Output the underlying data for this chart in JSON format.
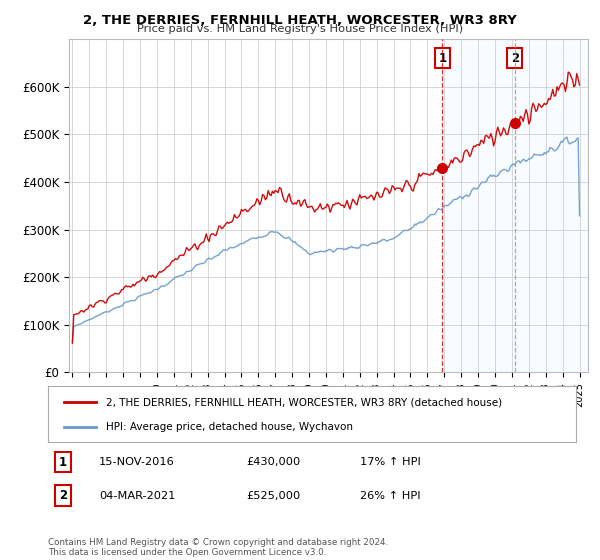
{
  "title": "2, THE DERRIES, FERNHILL HEATH, WORCESTER, WR3 8RY",
  "subtitle": "Price paid vs. HM Land Registry's House Price Index (HPI)",
  "legend_line1": "2, THE DERRIES, FERNHILL HEATH, WORCESTER, WR3 8RY (detached house)",
  "legend_line2": "HPI: Average price, detached house, Wychavon",
  "annotation1_label": "1",
  "annotation1_date": "15-NOV-2016",
  "annotation1_price": "£430,000",
  "annotation1_hpi": "17% ↑ HPI",
  "annotation2_label": "2",
  "annotation2_date": "04-MAR-2021",
  "annotation2_price": "£525,000",
  "annotation2_hpi": "26% ↑ HPI",
  "footer": "Contains HM Land Registry data © Crown copyright and database right 2024.\nThis data is licensed under the Open Government Licence v3.0.",
  "red_color": "#cc0000",
  "blue_color": "#6699cc",
  "shade_color": "#ddeeff",
  "annotation_color": "#cc0000",
  "vline1_color": "#cc0000",
  "vline2_color": "#999999",
  "background_color": "#ffffff",
  "grid_color": "#cccccc",
  "ylim": [
    0,
    700000
  ],
  "yticks": [
    0,
    100000,
    200000,
    300000,
    400000,
    500000,
    600000
  ],
  "ytick_labels": [
    "£0",
    "£100K",
    "£200K",
    "£300K",
    "£400K",
    "£500K",
    "£600K"
  ],
  "year_start": 1995,
  "year_end": 2025,
  "sale1_year": 2016.88,
  "sale1_price": 430000,
  "sale2_year": 2021.17,
  "sale2_price": 525000
}
